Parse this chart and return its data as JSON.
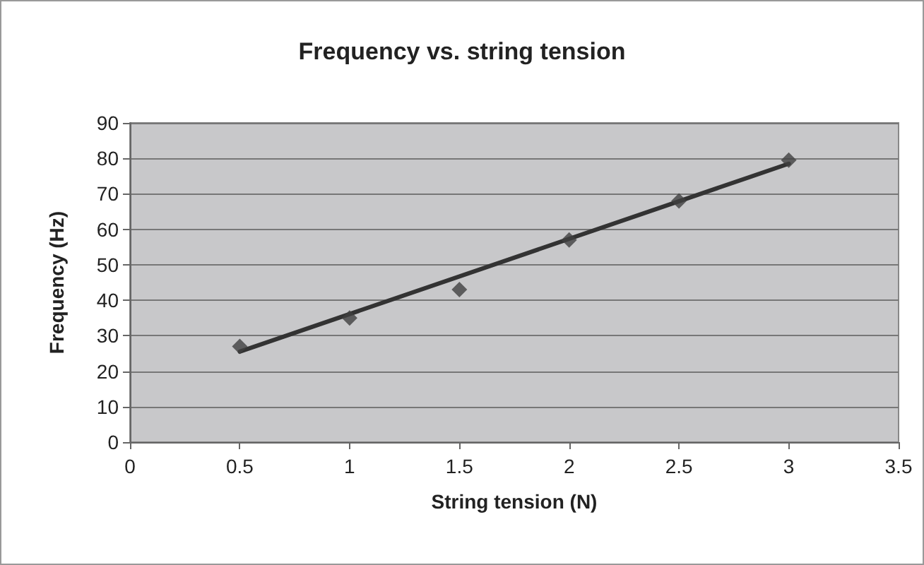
{
  "chart_data": {
    "type": "scatter",
    "title": "Frequency vs. string tension",
    "xlabel": "String tension (N)",
    "ylabel": "Frequency (Hz)",
    "series": [
      {
        "color": "#404040",
        "x": [
          0.5,
          1,
          1.5,
          2,
          2.5,
          3
        ],
        "values": [
          27,
          35,
          43,
          57,
          68,
          79.5
        ],
        "marker": "diamond"
      },
      {
        "type": "line",
        "color": "#333333",
        "x": [
          0.5,
          3
        ],
        "values": [
          25.5,
          78.5
        ],
        "marker": "none",
        "line_style": "solid"
      }
    ],
    "xlim": [
      0,
      3.5
    ],
    "xticks": [
      0,
      0.5,
      1,
      1.5,
      2,
      2.5,
      3,
      3.5
    ],
    "ylim": [
      0,
      90
    ],
    "yticks": [
      0,
      10,
      20,
      30,
      40,
      50,
      60,
      70,
      80,
      90
    ],
    "grid": "y"
  }
}
